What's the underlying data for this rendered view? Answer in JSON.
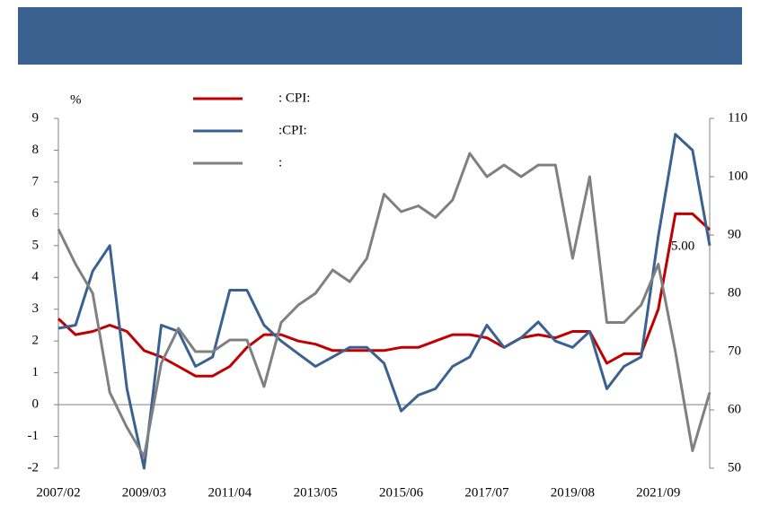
{
  "chart_data": {
    "type": "line",
    "ylabel": "%",
    "categories": [
      "2007/02",
      null,
      null,
      null,
      null,
      "2009/03",
      null,
      null,
      null,
      null,
      "2011/04",
      null,
      null,
      null,
      null,
      "2013/05",
      null,
      null,
      null,
      null,
      "2015/06",
      null,
      null,
      null,
      null,
      "2017/07",
      null,
      null,
      null,
      null,
      "2019/08",
      null,
      null,
      null,
      null,
      "2021/09",
      null,
      null,
      null
    ],
    "series": [
      {
        "name": ":      CPI:",
        "color": "#c00000",
        "values": [
          2.7,
          2.2,
          2.3,
          2.5,
          2.3,
          1.7,
          1.5,
          1.2,
          0.9,
          0.9,
          1.2,
          1.8,
          2.2,
          2.2,
          2.0,
          1.9,
          1.7,
          1.7,
          1.7,
          1.7,
          1.8,
          1.8,
          2.0,
          2.2,
          2.2,
          2.1,
          1.8,
          2.1,
          2.2,
          2.1,
          2.3,
          2.3,
          1.3,
          1.6,
          1.6,
          3.0,
          6.0,
          6.0,
          5.5
        ]
      },
      {
        "name": ":CPI:",
        "color": "#3a6190",
        "values": [
          2.4,
          2.5,
          4.2,
          5.0,
          0.5,
          -2.0,
          2.5,
          2.3,
          1.2,
          1.5,
          3.6,
          3.6,
          2.5,
          2.0,
          1.6,
          1.2,
          1.5,
          1.8,
          1.8,
          1.3,
          -0.2,
          0.3,
          0.5,
          1.2,
          1.5,
          2.5,
          1.8,
          2.1,
          2.6,
          2.0,
          1.8,
          2.3,
          0.5,
          1.2,
          1.5,
          5.3,
          8.5,
          8.0,
          5.0
        ]
      },
      {
        "name": ":",
        "color": "#808080",
        "axis": "y2",
        "values": [
          91,
          85,
          80,
          63,
          57,
          52,
          68,
          74,
          70,
          70,
          72,
          72,
          64,
          75,
          78,
          80,
          84,
          82,
          86,
          97,
          94,
          95,
          93,
          96,
          104,
          100,
          102,
          100,
          102,
          102,
          86,
          100,
          75,
          75,
          78,
          85,
          70,
          53,
          63
        ]
      }
    ],
    "ylim": [
      -2,
      9
    ],
    "yticks": [
      -2,
      -1,
      0,
      1,
      2,
      3,
      4,
      5,
      6,
      7,
      8,
      9
    ],
    "y2lim": [
      50,
      110
    ],
    "y2ticks": [
      50,
      60,
      70,
      80,
      90,
      100,
      110
    ],
    "annotation": "5.00"
  }
}
